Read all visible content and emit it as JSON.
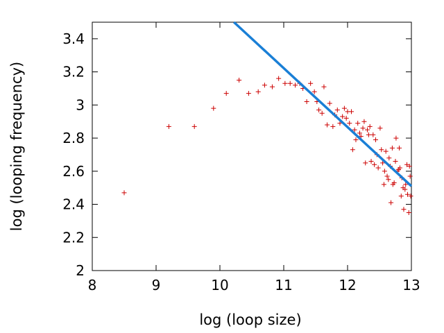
{
  "chart_data": {
    "type": "scatter",
    "xlabel": "log (loop size)",
    "ylabel": "log (looping frequency)",
    "xlim": [
      8,
      13
    ],
    "ylim": [
      2,
      3.5
    ],
    "xticks": [
      "8",
      "9",
      "10",
      "11",
      "12",
      "13"
    ],
    "yticks": [
      "2",
      "2.2",
      "2.4",
      "2.6",
      "2.8",
      "3",
      "3.2",
      "3.4"
    ],
    "grid": false,
    "series": [
      {
        "kind": "points",
        "marker": "plus",
        "color": "#cc0000",
        "points": [
          [
            8.5,
            2.47
          ],
          [
            9.2,
            2.87
          ],
          [
            9.6,
            2.87
          ],
          [
            9.9,
            2.98
          ],
          [
            10.1,
            3.07
          ],
          [
            10.3,
            3.15
          ],
          [
            10.45,
            3.07
          ],
          [
            10.6,
            3.08
          ],
          [
            10.7,
            3.12
          ],
          [
            10.82,
            3.11
          ],
          [
            10.92,
            3.16
          ],
          [
            11.02,
            3.13
          ],
          [
            11.1,
            3.13
          ],
          [
            11.18,
            3.12
          ],
          [
            11.25,
            3.13
          ],
          [
            11.3,
            3.1
          ],
          [
            11.36,
            3.02
          ],
          [
            11.42,
            3.13
          ],
          [
            11.48,
            3.08
          ],
          [
            11.52,
            3.02
          ],
          [
            11.55,
            2.97
          ],
          [
            11.6,
            2.95
          ],
          [
            11.63,
            3.11
          ],
          [
            11.68,
            2.88
          ],
          [
            11.72,
            3.01
          ],
          [
            11.77,
            2.87
          ],
          [
            11.8,
            2.94
          ],
          [
            11.84,
            2.97
          ],
          [
            11.88,
            2.89
          ],
          [
            11.92,
            2.93
          ],
          [
            11.95,
            2.98
          ],
          [
            11.98,
            2.92
          ],
          [
            12.0,
            2.96
          ],
          [
            12.03,
            2.89
          ],
          [
            12.06,
            2.96
          ],
          [
            12.08,
            2.73
          ],
          [
            12.11,
            2.85
          ],
          [
            12.13,
            2.79
          ],
          [
            12.16,
            2.89
          ],
          [
            12.19,
            2.83
          ],
          [
            12.21,
            2.81
          ],
          [
            12.24,
            2.86
          ],
          [
            12.26,
            2.9
          ],
          [
            12.28,
            2.65
          ],
          [
            12.31,
            2.85
          ],
          [
            12.33,
            2.82
          ],
          [
            12.35,
            2.87
          ],
          [
            12.37,
            2.66
          ],
          [
            12.4,
            2.82
          ],
          [
            12.42,
            2.64
          ],
          [
            12.44,
            2.79
          ],
          [
            12.46,
            2.7
          ],
          [
            12.48,
            2.62
          ],
          [
            12.51,
            2.86
          ],
          [
            12.53,
            2.73
          ],
          [
            12.55,
            2.65
          ],
          [
            12.57,
            2.52
          ],
          [
            12.58,
            2.6
          ],
          [
            12.6,
            2.72
          ],
          [
            12.62,
            2.57
          ],
          [
            12.64,
            2.55
          ],
          [
            12.65,
            2.68
          ],
          [
            12.67,
            2.63
          ],
          [
            12.68,
            2.41
          ],
          [
            12.7,
            2.74
          ],
          [
            12.71,
            2.52
          ],
          [
            12.73,
            2.53
          ],
          [
            12.75,
            2.66
          ],
          [
            12.76,
            2.8
          ],
          [
            12.78,
            2.6
          ],
          [
            12.8,
            2.61
          ],
          [
            12.81,
            2.74
          ],
          [
            12.82,
            2.62
          ],
          [
            12.84,
            2.45
          ],
          [
            12.85,
            2.56
          ],
          [
            12.87,
            2.5
          ],
          [
            12.88,
            2.37
          ],
          [
            12.9,
            2.49
          ],
          [
            12.91,
            2.52
          ],
          [
            12.93,
            2.64
          ],
          [
            12.94,
            2.46
          ],
          [
            12.96,
            2.35
          ],
          [
            12.97,
            2.63
          ],
          [
            12.98,
            2.57
          ],
          [
            12.99,
            2.45
          ]
        ]
      },
      {
        "kind": "line",
        "color": "#1a7fd6",
        "points": [
          [
            10.22,
            3.5
          ],
          [
            13.0,
            2.51
          ]
        ]
      }
    ]
  }
}
